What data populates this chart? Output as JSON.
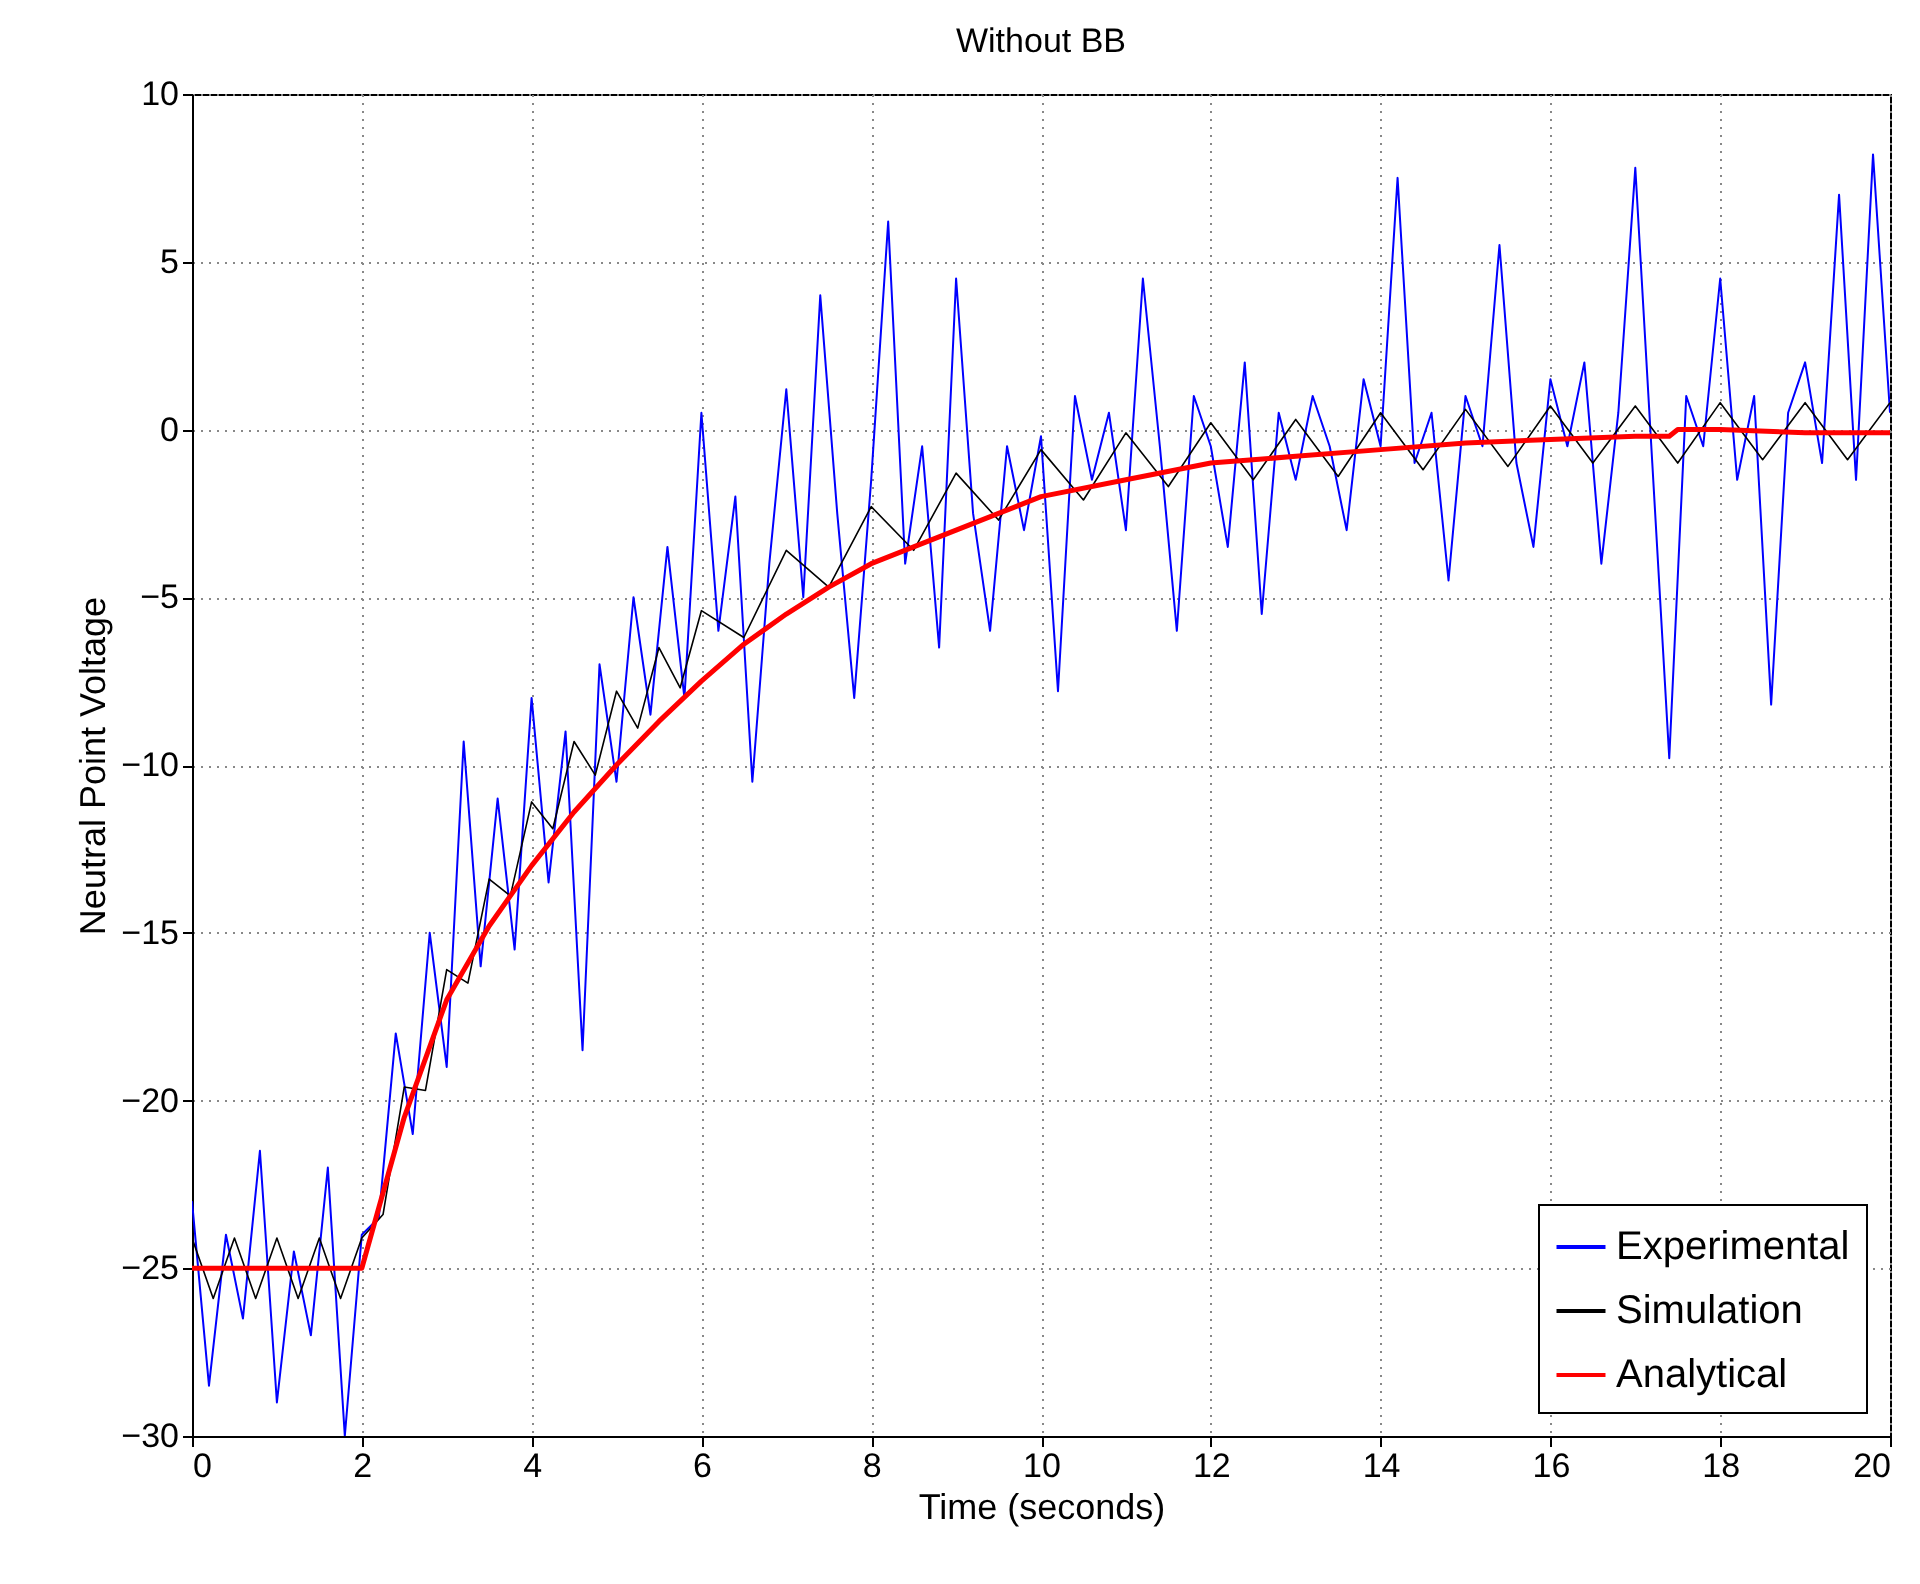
{
  "chart_data": {
    "type": "line",
    "title": "Without BB",
    "xlabel": "Time (seconds)",
    "ylabel": "Neutral Point Voltage",
    "xlim": [
      0,
      20
    ],
    "xticks": [
      0,
      2,
      4,
      6,
      8,
      10,
      12,
      14,
      16,
      18,
      20
    ],
    "ylim": [
      -30,
      10
    ],
    "yticks": [
      -30,
      -25,
      -20,
      -15,
      -10,
      -5,
      0,
      5,
      10
    ],
    "grid": true,
    "legend": "bottom right",
    "series": [
      {
        "name": "Experimental",
        "color": "#0000ff",
        "x": [
          0,
          0.2,
          0.4,
          0.6,
          0.8,
          1,
          1.2,
          1.4,
          1.6,
          1.8,
          2,
          2.2,
          2.4,
          2.6,
          2.8,
          3,
          3.2,
          3.4,
          3.6,
          3.8,
          4,
          4.2,
          4.4,
          4.6,
          4.8,
          5,
          5.2,
          5.4,
          5.6,
          5.8,
          6,
          6.2,
          6.4,
          6.6,
          6.8,
          7,
          7.2,
          7.4,
          7.6,
          7.8,
          8,
          8.2,
          8.4,
          8.6,
          8.8,
          9,
          9.2,
          9.4,
          9.6,
          9.8,
          10,
          10.2,
          10.4,
          10.6,
          10.8,
          11,
          11.2,
          11.4,
          11.6,
          11.8,
          12,
          12.2,
          12.4,
          12.6,
          12.8,
          13,
          13.2,
          13.4,
          13.6,
          13.8,
          14,
          14.2,
          14.4,
          14.6,
          14.8,
          15,
          15.2,
          15.4,
          15.6,
          15.8,
          16,
          16.2,
          16.4,
          16.6,
          16.8,
          17,
          17.2,
          17.4,
          17.6,
          17.8,
          18,
          18.2,
          18.4,
          18.6,
          18.8,
          19,
          19.2,
          19.4,
          19.6,
          19.8,
          20
        ],
        "values": [
          -23,
          -28.5,
          -24,
          -26.5,
          -21.5,
          -29,
          -24.5,
          -27,
          -22,
          -30,
          -24,
          -23.5,
          -18,
          -21,
          -15,
          -19,
          -9.3,
          -16,
          -11,
          -15.5,
          -8,
          -13.5,
          -9,
          -18.5,
          -7,
          -10.5,
          -5,
          -8.5,
          -3.5,
          -8,
          0.5,
          -6,
          -2,
          -10.5,
          -4,
          1.2,
          -5,
          4,
          -2.5,
          -8,
          -1.5,
          6.2,
          -4,
          -0.5,
          -6.5,
          4.5,
          -2.5,
          -6,
          -0.5,
          -3,
          -0.2,
          -7.8,
          1,
          -1.5,
          0.5,
          -3,
          4.5,
          -0.5,
          -6,
          1,
          -0.5,
          -3.5,
          2,
          -5.5,
          0.5,
          -1.5,
          1,
          -0.5,
          -3,
          1.5,
          -0.5,
          7.5,
          -1,
          0.5,
          -4.5,
          1,
          -0.5,
          5.5,
          -1,
          -3.5,
          1.5,
          -0.5,
          2,
          -4,
          0.5,
          7.8,
          -1,
          -9.8,
          1,
          -0.5,
          4.5,
          -1.5,
          1,
          -8.2,
          0.5,
          2,
          -1,
          7,
          -1.5,
          8.2,
          0.5
        ]
      },
      {
        "name": "Simulation",
        "color": "#000000",
        "x": [
          0,
          0.25,
          0.5,
          0.75,
          1,
          1.25,
          1.5,
          1.75,
          2,
          2.25,
          2.5,
          2.75,
          3,
          3.25,
          3.5,
          3.75,
          4,
          4.25,
          4.5,
          4.75,
          5,
          5.25,
          5.5,
          5.75,
          6,
          6.5,
          7,
          7.5,
          8,
          8.5,
          9,
          9.5,
          10,
          10.5,
          11,
          11.5,
          12,
          12.5,
          13,
          13.5,
          14,
          14.5,
          15,
          15.5,
          16,
          16.5,
          17,
          17.5,
          18,
          18.5,
          19,
          19.5,
          20
        ],
        "values": [
          -24.1,
          -25.9,
          -24.1,
          -25.9,
          -24.1,
          -25.9,
          -24.1,
          -25.9,
          -24.1,
          -23.4,
          -19.6,
          -19.7,
          -16.1,
          -16.5,
          -13.4,
          -13.9,
          -11.1,
          -11.9,
          -9.3,
          -10.3,
          -7.8,
          -8.9,
          -6.5,
          -7.7,
          -5.4,
          -6.2,
          -3.6,
          -4.7,
          -2.3,
          -3.6,
          -1.3,
          -2.7,
          -0.6,
          -2.1,
          -0.1,
          -1.7,
          0.2,
          -1.5,
          0.3,
          -1.4,
          0.5,
          -1.2,
          0.6,
          -1.1,
          0.7,
          -1,
          0.7,
          -1,
          0.8,
          -0.9,
          0.8,
          -0.9,
          0.8
        ]
      },
      {
        "name": "Analytical",
        "color": "#ff0000",
        "x": [
          0,
          2,
          2.5,
          3,
          3.5,
          4,
          4.5,
          5,
          5.5,
          6,
          6.5,
          7,
          7.5,
          8,
          8.5,
          9,
          9.5,
          10,
          11,
          12,
          13,
          14,
          15,
          16,
          17,
          17.4,
          17.5,
          18,
          19,
          20
        ],
        "values": [
          -25,
          -25,
          -20.5,
          -17,
          -14.8,
          -13,
          -11.4,
          -10,
          -8.7,
          -7.5,
          -6.4,
          -5.5,
          -4.7,
          -4,
          -3.5,
          -3,
          -2.5,
          -2,
          -1.5,
          -1,
          -0.8,
          -0.6,
          -0.4,
          -0.3,
          -0.2,
          -0.2,
          0,
          0,
          -0.1,
          -0.1
        ]
      }
    ]
  }
}
